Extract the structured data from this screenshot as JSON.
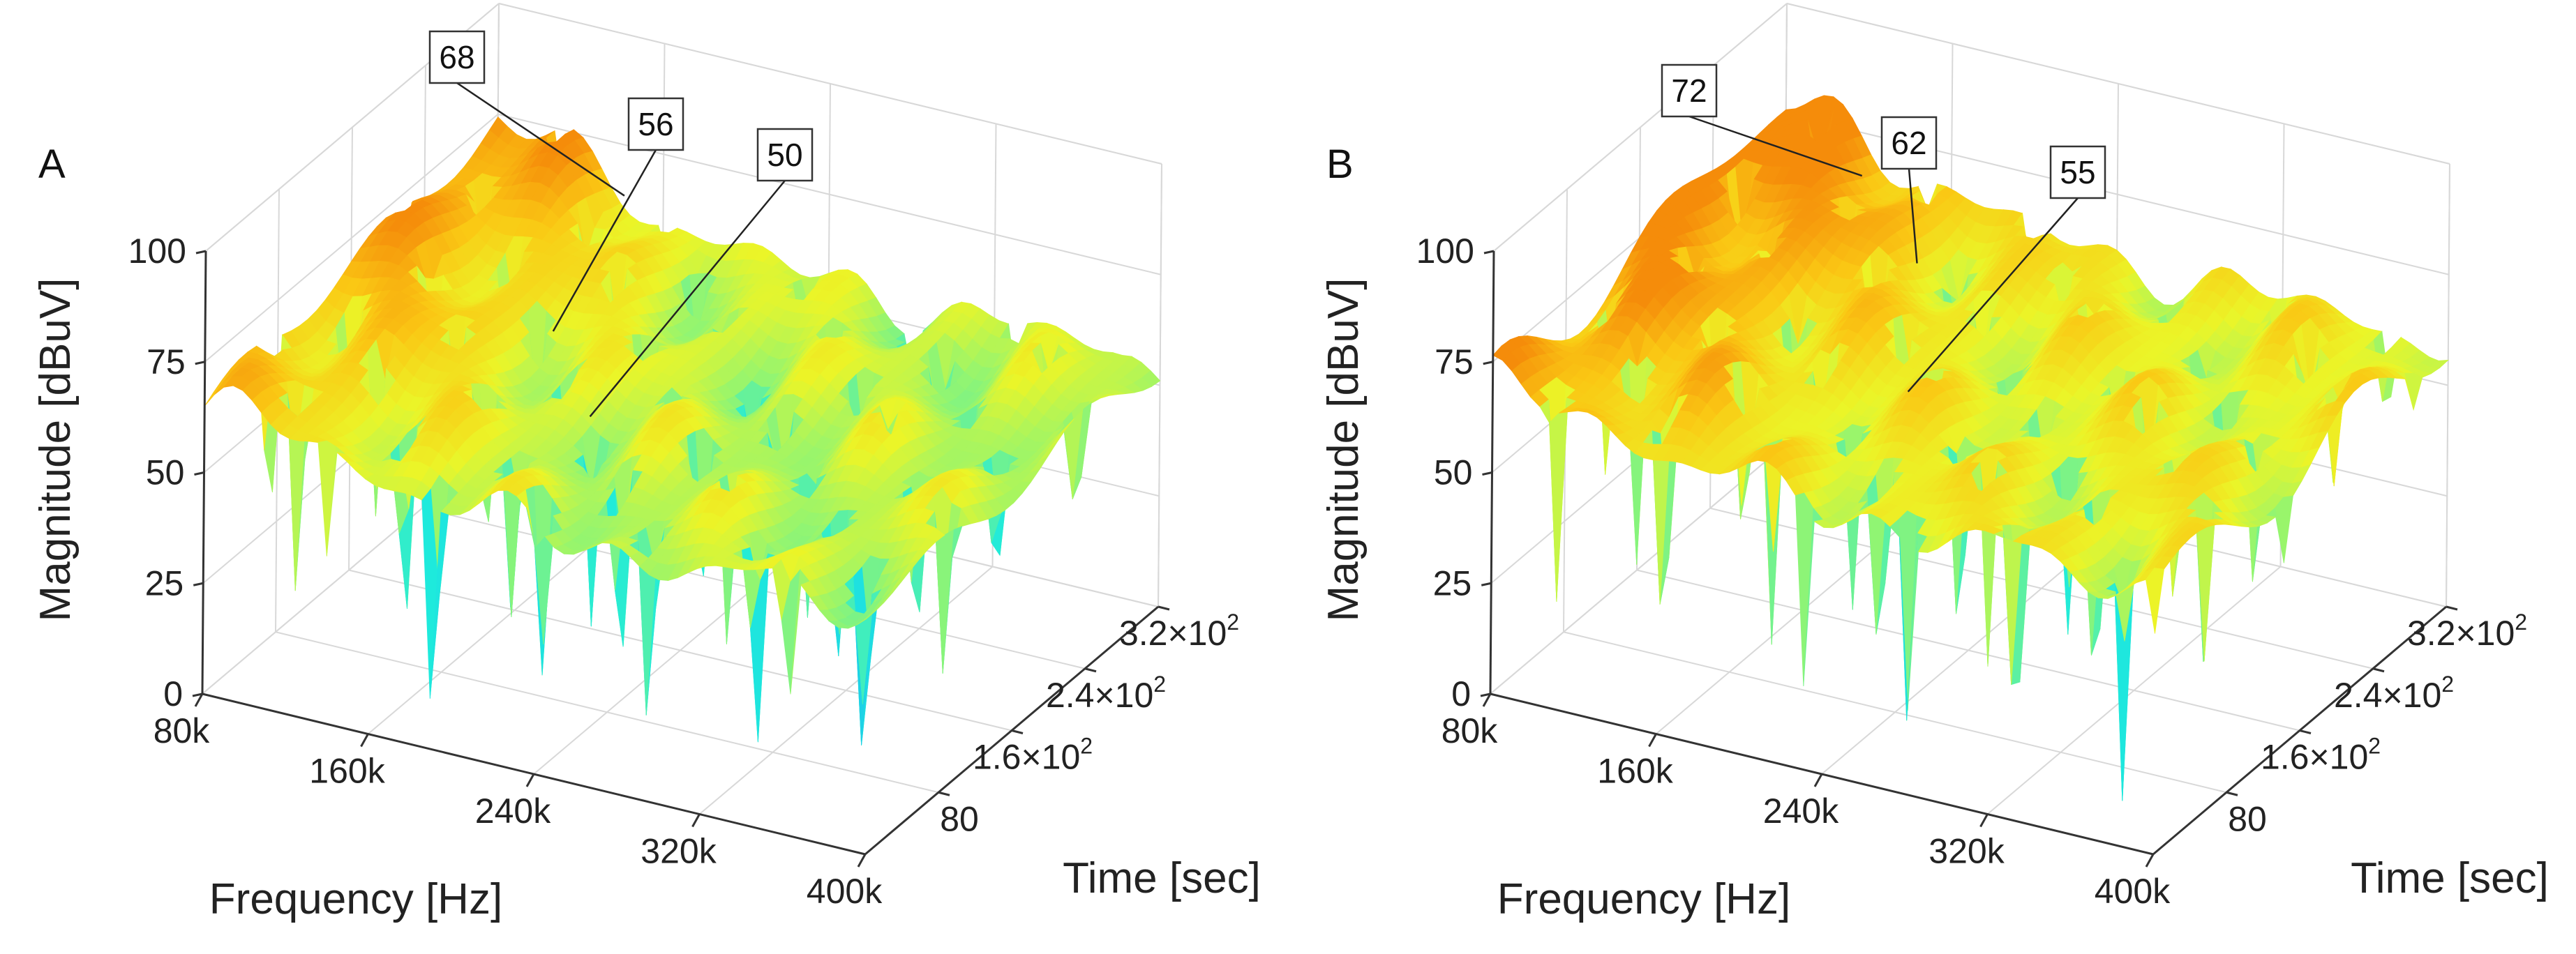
{
  "chart_data": [
    {
      "type": "surface3d",
      "panel_label": "A",
      "xlabel": "Frequency [Hz]",
      "ylabel": "Time [sec]",
      "zlabel": "Magnitude [dBuV]",
      "x_ticks": [
        "80k",
        "160k",
        "240k",
        "320k",
        "400k"
      ],
      "x_tick_values": [
        80000,
        160000,
        240000,
        320000,
        400000
      ],
      "y_ticks": [
        {
          "base": "80",
          "exp": ""
        },
        {
          "base": "1.6×10",
          "exp": "2"
        },
        {
          "base": "2.4×10",
          "exp": "2"
        },
        {
          "base": "3.2×10",
          "exp": "2"
        }
      ],
      "y_tick_values": [
        80,
        160,
        240,
        320
      ],
      "z_ticks": [
        "0",
        "25",
        "50",
        "75",
        "100"
      ],
      "zlim": [
        0,
        100
      ],
      "xlim": [
        80000,
        400000
      ],
      "ylim": [
        0,
        320
      ],
      "grid": true,
      "colormap": "parula-like (blue-cyan-yellow-orange)",
      "peak_dB": 68,
      "mid_dB": 56,
      "floor_dB": 50,
      "annotations": [
        {
          "text": "68",
          "x": 150000,
          "y": 300,
          "z": 68
        },
        {
          "text": "56",
          "x": 160000,
          "y": 200,
          "z": 56
        },
        {
          "text": "50",
          "x": 200000,
          "y": 150,
          "z": 50
        }
      ]
    },
    {
      "type": "surface3d",
      "panel_label": "B",
      "xlabel": "Frequency [Hz]",
      "ylabel": "Time [sec]",
      "zlabel": "Magnitude [dBuV]",
      "x_ticks": [
        "80k",
        "160k",
        "240k",
        "320k",
        "400k"
      ],
      "x_tick_values": [
        80000,
        160000,
        240000,
        320000,
        400000
      ],
      "y_ticks": [
        {
          "base": "80",
          "exp": ""
        },
        {
          "base": "1.6×10",
          "exp": "2"
        },
        {
          "base": "2.4×10",
          "exp": "2"
        },
        {
          "base": "3.2×10",
          "exp": "2"
        }
      ],
      "y_tick_values": [
        80,
        160,
        240,
        320
      ],
      "z_ticks": [
        "0",
        "25",
        "50",
        "75",
        "100"
      ],
      "zlim": [
        0,
        100
      ],
      "xlim": [
        80000,
        400000
      ],
      "ylim": [
        0,
        320
      ],
      "grid": true,
      "colormap": "parula-like (blue-cyan-yellow-orange)",
      "peak_dB": 72,
      "mid_dB": 62,
      "floor_dB": 55,
      "annotations": [
        {
          "text": "72",
          "x": 130000,
          "y": 290,
          "z": 72
        },
        {
          "text": "62",
          "x": 170000,
          "y": 260,
          "z": 62
        },
        {
          "text": "55",
          "x": 210000,
          "y": 160,
          "z": 55
        }
      ]
    }
  ]
}
